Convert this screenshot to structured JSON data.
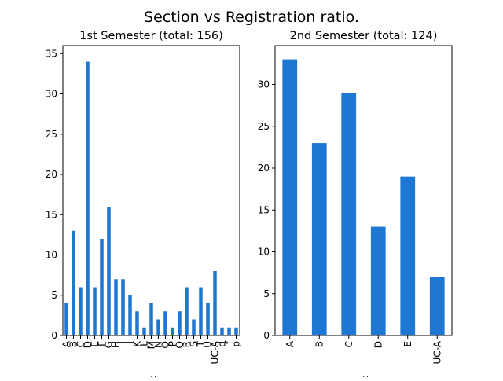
{
  "figure": {
    "suptitle": "Section vs Registration ratio."
  },
  "chart_data": [
    {
      "type": "bar",
      "title": "1st Semester (total: 156)",
      "xlabel": "section",
      "ylabel": "",
      "categories": [
        "A",
        "B",
        "C",
        "D",
        "E",
        "F",
        "G",
        "H",
        "I",
        "J",
        "K",
        "L",
        "M",
        "N",
        "O",
        "P",
        "Q",
        "R",
        "S",
        "T",
        "U",
        "UC-A",
        "d",
        "f",
        "p"
      ],
      "values": [
        4,
        13,
        6,
        34,
        6,
        12,
        16,
        7,
        7,
        5,
        3,
        1,
        4,
        2,
        3,
        1,
        3,
        6,
        2,
        6,
        4,
        8,
        1,
        1,
        1
      ],
      "ylim": [
        0,
        36
      ],
      "yticks": [
        0,
        5,
        10,
        15,
        20,
        25,
        30,
        35
      ],
      "grid": false,
      "color": "#1f77d4"
    },
    {
      "type": "bar",
      "title": "2nd Semester (total: 124)",
      "xlabel": "section",
      "ylabel": "",
      "categories": [
        "A",
        "B",
        "C",
        "D",
        "E",
        "UC-A"
      ],
      "values": [
        33,
        23,
        29,
        13,
        19,
        7
      ],
      "ylim": [
        0,
        34.65
      ],
      "yticks": [
        0,
        5,
        10,
        15,
        20,
        25,
        30
      ],
      "grid": false,
      "color": "#1f77d4"
    }
  ]
}
